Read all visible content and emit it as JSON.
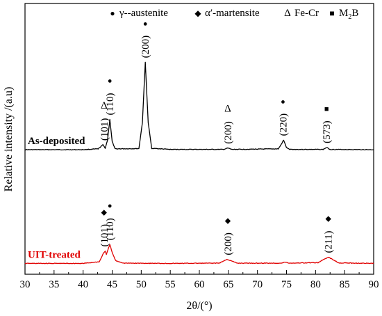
{
  "chart_data": {
    "type": "line",
    "xlabel": "2θ/(°)",
    "ylabel": "Relative intensity /(a.u)",
    "xlim": [
      30,
      90
    ],
    "ylim": [
      0,
      100
    ],
    "x_ticks": [
      30,
      35,
      40,
      45,
      50,
      55,
      60,
      65,
      70,
      75,
      80,
      85,
      90
    ],
    "y_ticks_shown": false,
    "grid": false,
    "legend": {
      "placement": "top",
      "entries": [
        {
          "symbol": "●",
          "label": "γ--austenite"
        },
        {
          "symbol": "◆",
          "label": "α′-martensite"
        },
        {
          "symbol": "Δ",
          "label": "Fe-Cr"
        },
        {
          "symbol": "■",
          "label": "M",
          "subscript": "2",
          "suffix": "B"
        }
      ]
    },
    "series": [
      {
        "name": "As-deposited",
        "color": "#000000",
        "label_color": "#000000",
        "baseline": 46,
        "points": [
          [
            30,
            46
          ],
          [
            35,
            46
          ],
          [
            40,
            46
          ],
          [
            42.6,
            46.3
          ],
          [
            43.4,
            47.8
          ],
          [
            43.8,
            46.6
          ],
          [
            44.2,
            49.5
          ],
          [
            44.6,
            57.2
          ],
          [
            45.0,
            49.0
          ],
          [
            45.5,
            46.3
          ],
          [
            49.6,
            46.4
          ],
          [
            50.2,
            56.0
          ],
          [
            50.7,
            78.3
          ],
          [
            51.2,
            56.0
          ],
          [
            51.8,
            46.5
          ],
          [
            55,
            46.1
          ],
          [
            64.2,
            46.1
          ],
          [
            64.9,
            46.6
          ],
          [
            65.6,
            46.1
          ],
          [
            73.6,
            46.3
          ],
          [
            74.1,
            48.0
          ],
          [
            74.5,
            49.5
          ],
          [
            75.0,
            46.8
          ],
          [
            75.5,
            46.1
          ],
          [
            81.3,
            46.1
          ],
          [
            81.9,
            46.8
          ],
          [
            82.5,
            46.1
          ],
          [
            90,
            46
          ]
        ]
      },
      {
        "name": "UIT-treated",
        "color": "#e00000",
        "label_color": "#e00000",
        "baseline": 4,
        "points": [
          [
            30,
            4
          ],
          [
            35,
            4
          ],
          [
            40,
            4
          ],
          [
            42.8,
            4.6
          ],
          [
            43.5,
            7.8
          ],
          [
            43.8,
            8.6
          ],
          [
            44.0,
            7.2
          ],
          [
            44.3,
            9.2
          ],
          [
            44.6,
            11.0
          ],
          [
            45.0,
            8.0
          ],
          [
            45.6,
            5.0
          ],
          [
            47,
            4.1
          ],
          [
            55,
            4.0
          ],
          [
            63.4,
            4.1
          ],
          [
            64.2,
            4.9
          ],
          [
            64.8,
            5.5
          ],
          [
            65.5,
            4.9
          ],
          [
            66.5,
            4.1
          ],
          [
            74.2,
            4.1
          ],
          [
            74.8,
            4.5
          ],
          [
            75.4,
            4.1
          ],
          [
            80.5,
            4.3
          ],
          [
            81.5,
            5.6
          ],
          [
            82.2,
            6.3
          ],
          [
            83.0,
            5.4
          ],
          [
            84.0,
            4.2
          ],
          [
            90,
            4
          ]
        ]
      }
    ],
    "annotations": [
      {
        "series": "As-deposited",
        "plane": "(101)",
        "symbol": "Δ",
        "x": 43.6,
        "y": 47.8
      },
      {
        "series": "As-deposited",
        "plane": "(110)",
        "symbol": "●",
        "x": 44.6,
        "y": 57.2
      },
      {
        "series": "As-deposited",
        "plane": "(200)",
        "symbol": "●",
        "x": 50.7,
        "y": 78.3
      },
      {
        "series": "As-deposited",
        "plane": "(200)",
        "symbol": "Δ",
        "x": 64.9,
        "y": 46.6
      },
      {
        "series": "As-deposited",
        "plane": "(220)",
        "symbol": "●",
        "x": 74.4,
        "y": 49.5
      },
      {
        "series": "As-deposited",
        "plane": "(573)",
        "symbol": "■",
        "x": 81.9,
        "y": 46.8
      },
      {
        "series": "UIT-treated",
        "plane": "(101)",
        "symbol": "◆",
        "x": 43.6,
        "y": 8.6
      },
      {
        "series": "UIT-treated",
        "plane": "(110)",
        "symbol": "●",
        "x": 44.6,
        "y": 11.0
      },
      {
        "series": "UIT-treated",
        "plane": "(200)",
        "symbol": "◆",
        "x": 64.9,
        "y": 5.5
      },
      {
        "series": "UIT-treated",
        "plane": "(211)",
        "symbol": "◆",
        "x": 82.2,
        "y": 6.3
      }
    ]
  }
}
